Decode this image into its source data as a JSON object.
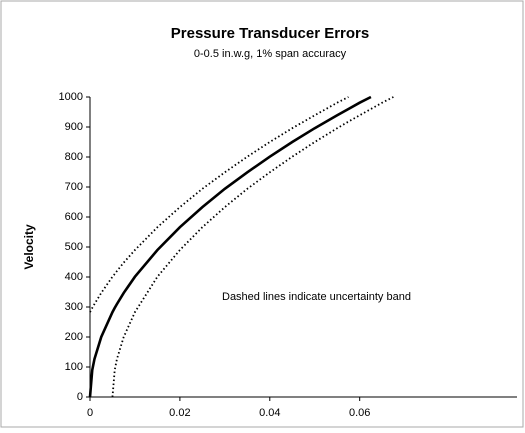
{
  "chart_data": {
    "type": "line",
    "title": "Pressure Transducer Errors",
    "subtitle": "0-0.5 in.w.g, 1% span accuracy",
    "y_label": "Velocity",
    "annotation": "Dashed lines indicate uncertainty band",
    "x": [
      0,
      0.0005,
      0.001,
      0.0025,
      0.005,
      0.0055,
      0.006,
      0.0075,
      0.01,
      0.015,
      0.02,
      0.025,
      0.03,
      0.035,
      0.04,
      0.045,
      0.05,
      0.055,
      0.0575,
      0.06,
      0.0625,
      0.065,
      0.0675
    ],
    "series": [
      {
        "color": "#000000",
        "style": "solid",
        "values": [
          0,
          90,
          127,
          200,
          283,
          297,
          310,
          347,
          401,
          490,
          566,
          633,
          694,
          749,
          801,
          850,
          896,
          939,
          960,
          981,
          1000,
          null,
          null
        ]
      },
      {
        "color": "#000000",
        "style": "dotted",
        "values": [
          283,
          297,
          310,
          347,
          401,
          410,
          420,
          448,
          490,
          566,
          633,
          694,
          749,
          801,
          850,
          896,
          939,
          981,
          1000,
          null,
          null,
          null,
          null
        ]
      },
      {
        "color": "#000000",
        "style": "dotted",
        "values": [
          null,
          null,
          null,
          null,
          0,
          90,
          127,
          200,
          283,
          401,
          490,
          566,
          633,
          694,
          749,
          801,
          850,
          896,
          918,
          939,
          960,
          981,
          1000
        ]
      }
    ],
    "xlim": [
      0,
      0.095
    ],
    "xticks": [
      0,
      0.02,
      0.04,
      0.06
    ],
    "ylim": [
      0,
      1000
    ],
    "yticks": [
      0,
      100,
      200,
      300,
      400,
      500,
      600,
      700,
      800,
      900,
      1000
    ],
    "grid": false
  }
}
